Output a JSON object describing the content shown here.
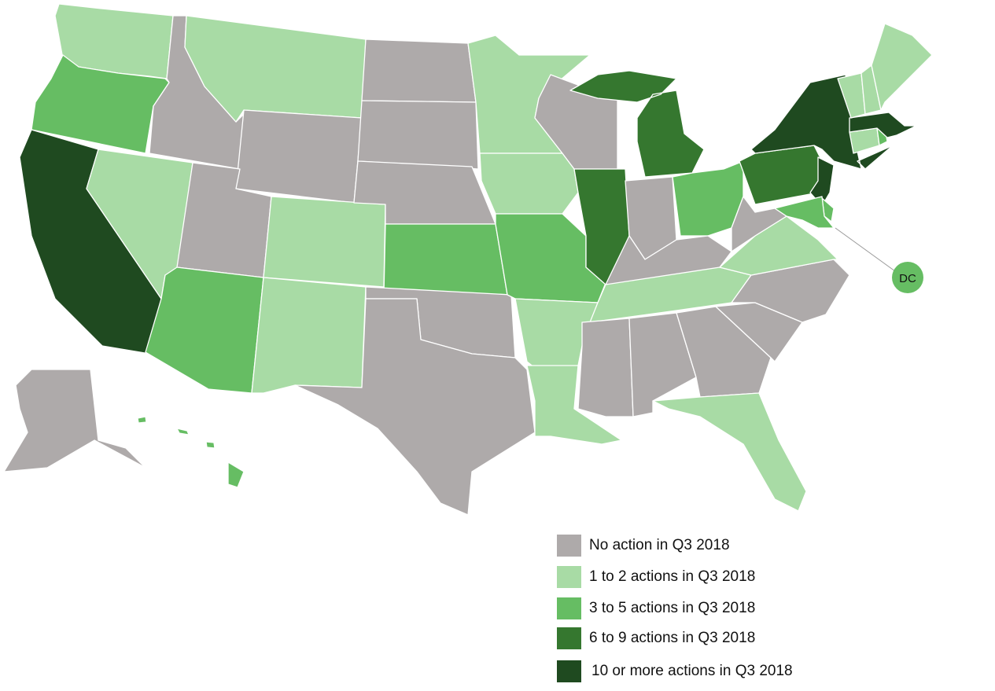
{
  "colors": {
    "none": "#aeaaaa",
    "1-2": "#a8dba5",
    "3-5": "#66bd63",
    "6-9": "#35772f",
    "10+": "#1f4a20"
  },
  "legend": [
    {
      "key": "none",
      "label": "No action in Q3 2018"
    },
    {
      "key": "1-2",
      "label": "1 to 2 actions in Q3 2018"
    },
    {
      "key": "3-5",
      "label": "3 to 5 actions in Q3 2018"
    },
    {
      "key": "6-9",
      "label": "6 to 9 actions in Q3 2018"
    },
    {
      "key": "10+",
      "label": "10 or more actions in Q3 2018"
    }
  ],
  "dc_label": "DC",
  "states": {
    "WA": "1-2",
    "OR": "3-5",
    "CA": "10+",
    "ID": "none",
    "NV": "1-2",
    "MT": "1-2",
    "WY": "none",
    "UT": "none",
    "AZ": "3-5",
    "CO": "1-2",
    "NM": "1-2",
    "ND": "none",
    "SD": "none",
    "NE": "none",
    "KS": "3-5",
    "OK": "none",
    "TX": "none",
    "MN": "1-2",
    "IA": "1-2",
    "MO": "3-5",
    "AR": "1-2",
    "LA": "1-2",
    "WI": "none",
    "IL": "6-9",
    "MI": "6-9",
    "IN": "none",
    "OH": "3-5",
    "KY": "none",
    "TN": "1-2",
    "MS": "none",
    "AL": "none",
    "GA": "none",
    "FL": "1-2",
    "SC": "none",
    "NC": "none",
    "VA": "1-2",
    "WV": "none",
    "PA": "6-9",
    "NY": "10+",
    "NJ": "10+",
    "DE": "3-5",
    "MD": "3-5",
    "CT": "1-2",
    "RI": "3-5",
    "MA": "10+",
    "VT": "1-2",
    "NH": "1-2",
    "ME": "1-2",
    "AK": "none",
    "HI": "3-5",
    "DC": "3-5"
  }
}
